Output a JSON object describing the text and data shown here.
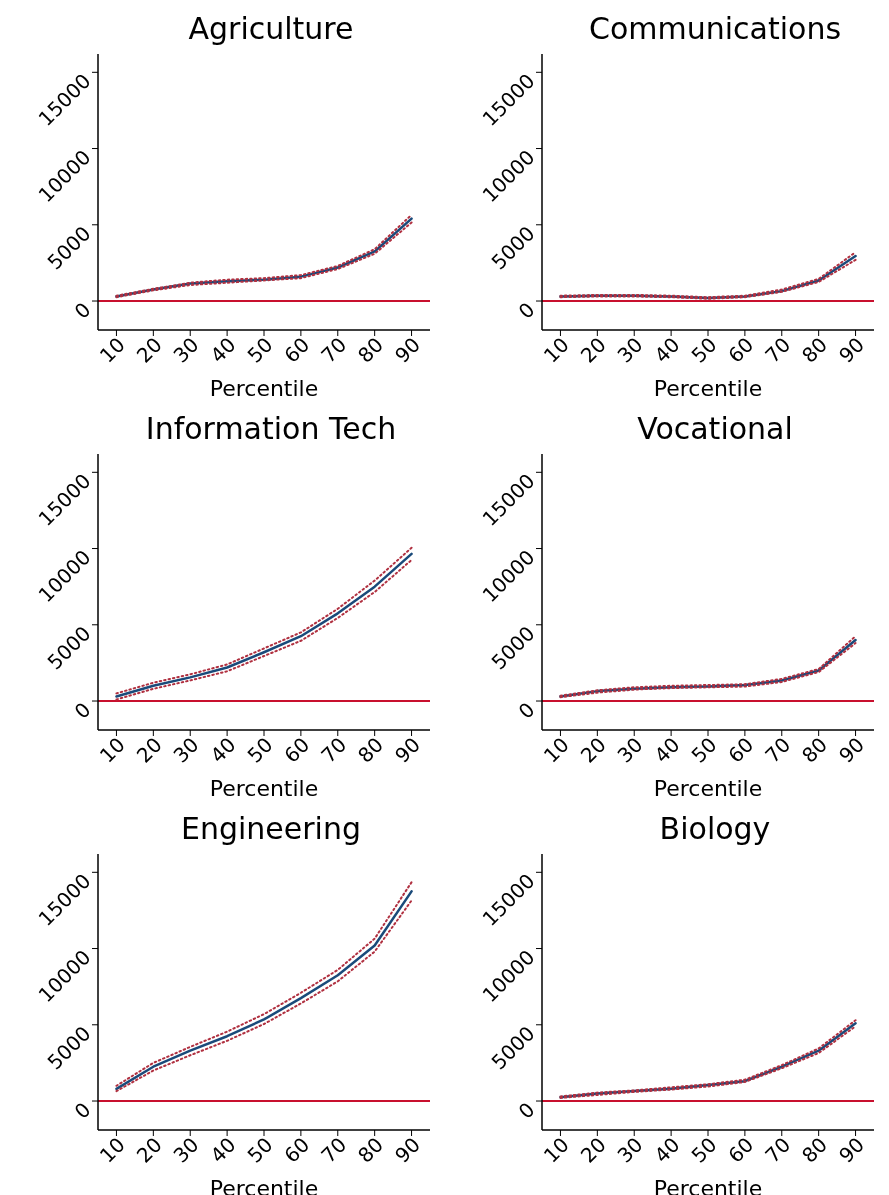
{
  "chart_data": [
    {
      "type": "line",
      "title": "Agriculture",
      "xlabel": "Percentile",
      "x": [
        10,
        20,
        30,
        40,
        50,
        60,
        70,
        80,
        90
      ],
      "series": [
        {
          "color": "#b03040",
          "line_style": "dotted",
          "values": [
            250,
            700,
            1050,
            1200,
            1350,
            1500,
            2100,
            3100,
            5150
          ]
        },
        {
          "color": "#b03040",
          "line_style": "dotted",
          "values": [
            350,
            800,
            1200,
            1400,
            1500,
            1700,
            2300,
            3400,
            5650
          ]
        },
        {
          "color": "#1a4a7a",
          "line_style": "solid",
          "values": [
            300,
            750,
            1150,
            1300,
            1400,
            1600,
            2200,
            3250,
            5400
          ]
        }
      ],
      "xlim": [
        5,
        95
      ],
      "xticks": [
        10,
        20,
        30,
        40,
        50,
        60,
        70,
        80,
        90
      ],
      "ylim": [
        -1900,
        16200
      ],
      "yticks": [
        0,
        5000,
        10000,
        15000
      ],
      "ref_lines": [
        {
          "axis": "y",
          "value": 0,
          "color": "#c8102e"
        }
      ]
    },
    {
      "type": "line",
      "title": "Communications",
      "xlabel": "Percentile",
      "x": [
        10,
        20,
        30,
        40,
        50,
        60,
        70,
        80,
        90
      ],
      "series": [
        {
          "color": "#b03040",
          "line_style": "dotted",
          "values": [
            250,
            300,
            300,
            250,
            150,
            250,
            600,
            1250,
            2700
          ]
        },
        {
          "color": "#b03040",
          "line_style": "dotted",
          "values": [
            350,
            400,
            400,
            350,
            250,
            350,
            750,
            1450,
            3200
          ]
        },
        {
          "color": "#1a4a7a",
          "line_style": "solid",
          "values": [
            300,
            350,
            350,
            300,
            200,
            300,
            650,
            1350,
            2950
          ]
        }
      ],
      "xlim": [
        5,
        95
      ],
      "xticks": [
        10,
        20,
        30,
        40,
        50,
        60,
        70,
        80,
        90
      ],
      "ylim": [
        -1900,
        16200
      ],
      "yticks": [
        0,
        5000,
        10000,
        15000
      ],
      "ref_lines": [
        {
          "axis": "y",
          "value": 0,
          "color": "#c8102e"
        }
      ]
    },
    {
      "type": "line",
      "title": "Information Tech",
      "xlabel": "Percentile",
      "x": [
        10,
        20,
        30,
        40,
        50,
        60,
        70,
        80,
        90
      ],
      "series": [
        {
          "color": "#b03040",
          "line_style": "dotted",
          "values": [
            100,
            800,
            1350,
            1950,
            2950,
            3950,
            5450,
            7150,
            9250
          ]
        },
        {
          "color": "#b03040",
          "line_style": "dotted",
          "values": [
            500,
            1200,
            1750,
            2400,
            3450,
            4500,
            6050,
            7900,
            10050
          ]
        },
        {
          "color": "#1a4a7a",
          "line_style": "solid",
          "values": [
            300,
            1000,
            1550,
            2200,
            3200,
            4250,
            5750,
            7500,
            9650
          ]
        }
      ],
      "xlim": [
        5,
        95
      ],
      "xticks": [
        10,
        20,
        30,
        40,
        50,
        60,
        70,
        80,
        90
      ],
      "ylim": [
        -1900,
        16200
      ],
      "yticks": [
        0,
        5000,
        10000,
        15000
      ],
      "ref_lines": [
        {
          "axis": "y",
          "value": 0,
          "color": "#c8102e"
        }
      ]
    },
    {
      "type": "line",
      "title": "Vocational",
      "xlabel": "Percentile",
      "x": [
        10,
        20,
        30,
        40,
        50,
        60,
        70,
        80,
        90
      ],
      "series": [
        {
          "color": "#b03040",
          "line_style": "dotted",
          "values": [
            250,
            550,
            750,
            850,
            900,
            950,
            1250,
            1900,
            3800
          ]
        },
        {
          "color": "#b03040",
          "line_style": "dotted",
          "values": [
            350,
            700,
            900,
            1000,
            1050,
            1100,
            1450,
            2100,
            4250
          ]
        },
        {
          "color": "#1a4a7a",
          "line_style": "solid",
          "values": [
            300,
            650,
            800,
            900,
            950,
            1050,
            1350,
            2000,
            4000
          ]
        }
      ],
      "xlim": [
        5,
        95
      ],
      "xticks": [
        10,
        20,
        30,
        40,
        50,
        60,
        70,
        80,
        90
      ],
      "ylim": [
        -1900,
        16200
      ],
      "yticks": [
        0,
        5000,
        10000,
        15000
      ],
      "ref_lines": [
        {
          "axis": "y",
          "value": 0,
          "color": "#c8102e"
        }
      ]
    },
    {
      "type": "line",
      "title": "Engineering",
      "xlabel": "Percentile",
      "x": [
        10,
        20,
        30,
        40,
        50,
        60,
        70,
        80,
        90
      ],
      "series": [
        {
          "color": "#b03040",
          "line_style": "dotted",
          "values": [
            650,
            2000,
            3000,
            3950,
            5050,
            6400,
            7850,
            9800,
            13150
          ]
        },
        {
          "color": "#b03040",
          "line_style": "dotted",
          "values": [
            1000,
            2500,
            3550,
            4550,
            5700,
            7100,
            8600,
            10650,
            14350
          ]
        },
        {
          "color": "#1a4a7a",
          "line_style": "solid",
          "values": [
            800,
            2250,
            3300,
            4250,
            5350,
            6750,
            8250,
            10200,
            13750
          ]
        }
      ],
      "xlim": [
        5,
        95
      ],
      "xticks": [
        10,
        20,
        30,
        40,
        50,
        60,
        70,
        80,
        90
      ],
      "ylim": [
        -1900,
        16200
      ],
      "yticks": [
        0,
        5000,
        10000,
        15000
      ],
      "ref_lines": [
        {
          "axis": "y",
          "value": 0,
          "color": "#c8102e"
        }
      ]
    },
    {
      "type": "line",
      "title": "Biology",
      "xlabel": "Percentile",
      "x": [
        10,
        20,
        30,
        40,
        50,
        60,
        70,
        80,
        90
      ],
      "series": [
        {
          "color": "#b03040",
          "line_style": "dotted",
          "values": [
            200,
            400,
            600,
            750,
            950,
            1250,
            2150,
            3150,
            4900
          ]
        },
        {
          "color": "#b03040",
          "line_style": "dotted",
          "values": [
            300,
            550,
            700,
            900,
            1100,
            1400,
            2350,
            3450,
            5300
          ]
        },
        {
          "color": "#1a4a7a",
          "line_style": "solid",
          "values": [
            250,
            500,
            650,
            800,
            1050,
            1300,
            2250,
            3300,
            5100
          ]
        }
      ],
      "xlim": [
        5,
        95
      ],
      "xticks": [
        10,
        20,
        30,
        40,
        50,
        60,
        70,
        80,
        90
      ],
      "ylim": [
        -1900,
        16200
      ],
      "yticks": [
        0,
        5000,
        10000,
        15000
      ],
      "ref_lines": [
        {
          "axis": "y",
          "value": 0,
          "color": "#c8102e"
        }
      ]
    }
  ]
}
